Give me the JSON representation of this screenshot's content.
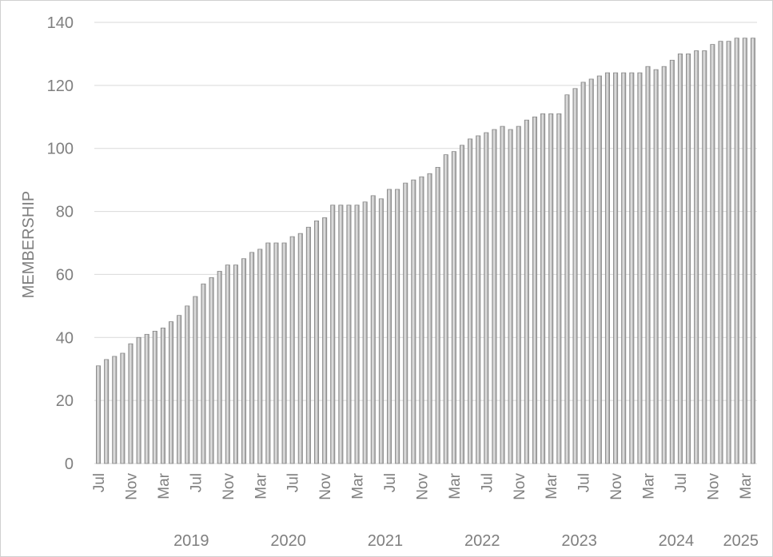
{
  "chart_data": {
    "type": "bar",
    "ylabel": "MEMBERSHIP",
    "xlabel": "",
    "ylim": [
      0,
      140
    ],
    "y_ticks": [
      0,
      20,
      40,
      60,
      80,
      100,
      120,
      140
    ],
    "grid": true,
    "bar_color": "#c8c8c8",
    "categories": [
      "Jul 2018",
      "Aug 2018",
      "Sep 2018",
      "Oct 2018",
      "Nov 2018",
      "Dec 2018",
      "Jan 2019",
      "Feb 2019",
      "Mar 2019",
      "Apr 2019",
      "May 2019",
      "Jun 2019",
      "Jul 2019",
      "Aug 2019",
      "Sep 2019",
      "Oct 2019",
      "Nov 2019",
      "Dec 2019",
      "Jan 2020",
      "Feb 2020",
      "Mar 2020",
      "Apr 2020",
      "May 2020",
      "Jun 2020",
      "Jul 2020",
      "Aug 2020",
      "Sep 2020",
      "Oct 2020",
      "Nov 2020",
      "Dec 2020",
      "Jan 2021",
      "Feb 2021",
      "Mar 2021",
      "Apr 2021",
      "May 2021",
      "Jun 2021",
      "Jul 2021",
      "Aug 2021",
      "Sep 2021",
      "Oct 2021",
      "Nov 2021",
      "Dec 2021",
      "Jan 2022",
      "Feb 2022",
      "Mar 2022",
      "Apr 2022",
      "May 2022",
      "Jun 2022",
      "Jul 2022",
      "Aug 2022",
      "Sep 2022",
      "Oct 2022",
      "Nov 2022",
      "Dec 2022",
      "Jan 2023",
      "Feb 2023",
      "Mar 2023",
      "Apr 2023",
      "May 2023",
      "Jun 2023",
      "Jul 2023",
      "Aug 2023",
      "Sep 2023",
      "Oct 2023",
      "Nov 2023",
      "Dec 2023",
      "Jan 2024",
      "Feb 2024",
      "Mar 2024",
      "Apr 2024",
      "May 2024",
      "Jun 2024",
      "Jul 2024",
      "Aug 2024",
      "Sep 2024",
      "Oct 2024",
      "Nov 2024",
      "Dec 2024",
      "Jan 2025",
      "Feb 2025",
      "Mar 2025",
      "Apr 2025"
    ],
    "values": [
      31,
      33,
      34,
      35,
      38,
      40,
      41,
      42,
      43,
      45,
      47,
      50,
      53,
      57,
      59,
      61,
      63,
      63,
      65,
      67,
      68,
      70,
      70,
      70,
      72,
      73,
      75,
      77,
      78,
      82,
      82,
      82,
      82,
      83,
      85,
      84,
      87,
      87,
      89,
      90,
      91,
      92,
      94,
      98,
      99,
      101,
      103,
      104,
      105,
      106,
      107,
      106,
      107,
      109,
      110,
      111,
      111,
      111,
      117,
      119,
      121,
      122,
      123,
      124,
      124,
      124,
      124,
      124,
      126,
      125,
      126,
      128,
      130,
      130,
      131,
      131,
      133,
      134,
      134,
      135,
      135,
      135
    ],
    "x_tick_labels": [
      {
        "index": 0,
        "label": "Jul"
      },
      {
        "index": 4,
        "label": "Nov"
      },
      {
        "index": 8,
        "label": "Mar"
      },
      {
        "index": 12,
        "label": "Jul"
      },
      {
        "index": 16,
        "label": "Nov"
      },
      {
        "index": 20,
        "label": "Mar"
      },
      {
        "index": 24,
        "label": "Jul"
      },
      {
        "index": 28,
        "label": "Nov"
      },
      {
        "index": 32,
        "label": "Mar"
      },
      {
        "index": 36,
        "label": "Jul"
      },
      {
        "index": 40,
        "label": "Nov"
      },
      {
        "index": 44,
        "label": "Mar"
      },
      {
        "index": 48,
        "label": "Jul"
      },
      {
        "index": 52,
        "label": "Nov"
      },
      {
        "index": 56,
        "label": "Mar"
      },
      {
        "index": 60,
        "label": "Jul"
      },
      {
        "index": 64,
        "label": "Nov"
      },
      {
        "index": 68,
        "label": "Mar"
      },
      {
        "index": 72,
        "label": "Jul"
      },
      {
        "index": 76,
        "label": "Nov"
      },
      {
        "index": 80,
        "label": "Mar"
      }
    ],
    "year_labels": [
      {
        "label": "2019",
        "start": 6,
        "end": 17
      },
      {
        "label": "2020",
        "start": 18,
        "end": 29
      },
      {
        "label": "2021",
        "start": 30,
        "end": 41
      },
      {
        "label": "2022",
        "start": 42,
        "end": 53
      },
      {
        "label": "2023",
        "start": 54,
        "end": 65
      },
      {
        "label": "2024",
        "start": 66,
        "end": 77
      },
      {
        "label": "2025",
        "start": 78,
        "end": 81
      }
    ]
  }
}
